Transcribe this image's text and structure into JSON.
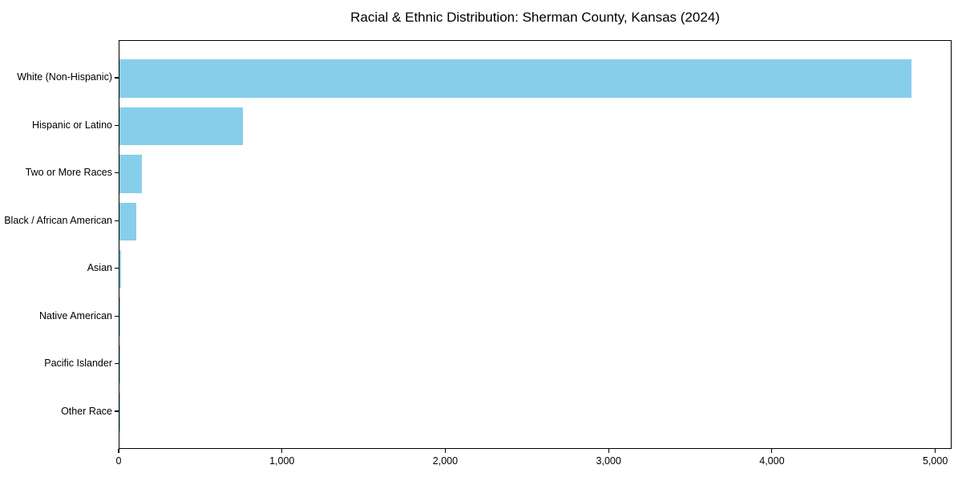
{
  "chart_data": {
    "type": "bar",
    "orientation": "horizontal",
    "title": "Racial & Ethnic Distribution: Sherman County, Kansas (2024)",
    "categories": [
      "White (Non-Hispanic)",
      "Hispanic or Latino",
      "Two or More Races",
      "Black / African American",
      "Asian",
      "Native American",
      "Pacific Islander",
      "Other Race"
    ],
    "values": [
      4850,
      755,
      135,
      105,
      8,
      4,
      2,
      2
    ],
    "xlabel": "",
    "ylabel": "",
    "xlim": [
      0,
      5100
    ],
    "x_ticks": [
      0,
      1000,
      2000,
      3000,
      4000,
      5000
    ],
    "x_tick_labels": [
      "0",
      "1,000",
      "2,000",
      "3,000",
      "4,000",
      "5,000"
    ],
    "bar_color": "#87CEEB",
    "background": "#FFFFFF",
    "text_color": "#000000",
    "grid": false,
    "legend": "none",
    "categories_inverted_top_to_bottom": true
  }
}
